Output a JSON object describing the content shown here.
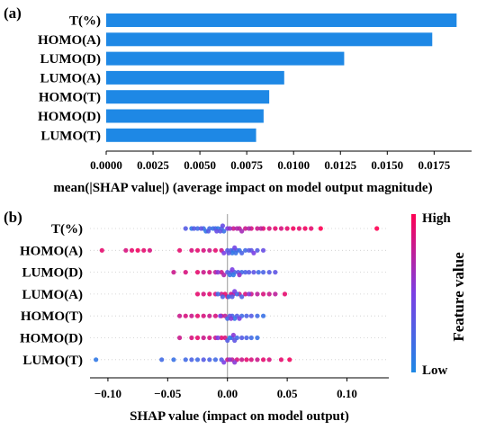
{
  "panel_a_label": "(a)",
  "panel_b_label": "(b)",
  "colors": {
    "bar": "#1E88E5",
    "low": "#1E88E5",
    "high": "#FF0052"
  },
  "chart_data": [
    {
      "type": "bar",
      "orientation": "horizontal",
      "categories": [
        "T(%)",
        "HOMO(A)",
        "LUMO(D)",
        "LUMO(A)",
        "HOMO(T)",
        "HOMO(D)",
        "LUMO(T)"
      ],
      "values": [
        0.0187,
        0.0174,
        0.0127,
        0.0095,
        0.0087,
        0.0084,
        0.008
      ],
      "xlabel": "mean(|SHAP value|) (average impact on model output magnitude)",
      "xticks": [
        "0.0000",
        "0.0025",
        "0.0050",
        "0.0075",
        "0.0100",
        "0.0125",
        "0.0150",
        "0.0175"
      ],
      "xlim": [
        0,
        0.0195
      ]
    },
    {
      "type": "scatter",
      "subtype": "beeswarm",
      "categories": [
        "T(%)",
        "HOMO(A)",
        "LUMO(D)",
        "LUMO(A)",
        "HOMO(T)",
        "HOMO(D)",
        "LUMO(T)"
      ],
      "xlabel": "SHAP value (impact on model output)",
      "xticks": [
        "−0.10",
        "−0.05",
        "0.00",
        "0.05",
        "0.10"
      ],
      "xlim": [
        -0.115,
        0.135
      ],
      "colorbar": {
        "title": "Feature value",
        "high_label": "High",
        "low_label": "Low"
      },
      "series": [
        {
          "name": "T(%)",
          "points": [
            [
              -0.03,
              0.1
            ],
            [
              -0.025,
              0.2
            ],
            [
              -0.02,
              0.15
            ],
            [
              -0.018,
              0.1
            ],
            [
              -0.015,
              0.2
            ],
            [
              -0.012,
              0.15
            ],
            [
              -0.01,
              0.25
            ],
            [
              -0.008,
              0.1
            ],
            [
              -0.005,
              0.2
            ],
            [
              -0.003,
              0.15
            ],
            [
              -0.028,
              0.3
            ],
            [
              -0.022,
              0.35
            ],
            [
              -0.016,
              0.3
            ],
            [
              -0.009,
              0.4
            ],
            [
              -0.006,
              0.35
            ],
            [
              -0.004,
              0.4
            ],
            [
              -0.035,
              0.3
            ],
            [
              0.005,
              0.8
            ],
            [
              0.01,
              0.75
            ],
            [
              0.015,
              0.8
            ],
            [
              0.02,
              0.85
            ],
            [
              0.025,
              0.8
            ],
            [
              0.03,
              0.9
            ],
            [
              0.035,
              0.85
            ],
            [
              0.04,
              0.9
            ],
            [
              0.045,
              0.85
            ],
            [
              0.05,
              0.9
            ],
            [
              0.055,
              0.95
            ],
            [
              0.06,
              0.9
            ],
            [
              0.065,
              0.95
            ],
            [
              0.07,
              0.9
            ],
            [
              0.078,
              1.0
            ],
            [
              0.125,
              1.0
            ],
            [
              0.0,
              0.5
            ],
            [
              0.002,
              0.6
            ],
            [
              0.008,
              0.7
            ],
            [
              0.012,
              0.65
            ],
            [
              0.018,
              0.7
            ],
            [
              0.028,
              0.75
            ]
          ]
        },
        {
          "name": "HOMO(A)",
          "points": [
            [
              -0.105,
              0.9
            ],
            [
              -0.085,
              0.85
            ],
            [
              -0.08,
              0.9
            ],
            [
              -0.075,
              0.95
            ],
            [
              -0.07,
              0.9
            ],
            [
              -0.065,
              0.85
            ],
            [
              -0.04,
              0.9
            ],
            [
              -0.03,
              0.85
            ],
            [
              -0.025,
              0.9
            ],
            [
              -0.02,
              0.85
            ],
            [
              -0.015,
              0.8
            ],
            [
              -0.01,
              0.9
            ],
            [
              -0.005,
              0.8
            ],
            [
              0.0,
              0.3
            ],
            [
              0.003,
              0.25
            ],
            [
              0.005,
              0.2
            ],
            [
              0.008,
              0.3
            ],
            [
              0.01,
              0.15
            ],
            [
              0.012,
              0.25
            ],
            [
              0.015,
              0.2
            ],
            [
              0.018,
              0.3
            ],
            [
              0.02,
              0.35
            ],
            [
              0.025,
              0.3
            ],
            [
              0.03,
              0.4
            ],
            [
              0.004,
              0.1
            ],
            [
              0.007,
              0.15
            ],
            [
              0.001,
              0.35
            ],
            [
              -0.003,
              0.5
            ],
            [
              0.006,
              0.45
            ],
            [
              0.022,
              0.5
            ]
          ]
        },
        {
          "name": "LUMO(D)",
          "points": [
            [
              -0.045,
              0.8
            ],
            [
              -0.035,
              0.85
            ],
            [
              -0.025,
              0.9
            ],
            [
              -0.02,
              0.8
            ],
            [
              -0.015,
              0.85
            ],
            [
              -0.01,
              0.75
            ],
            [
              -0.005,
              0.8
            ],
            [
              -0.003,
              0.7
            ],
            [
              0.0,
              0.3
            ],
            [
              0.003,
              0.35
            ],
            [
              0.006,
              0.25
            ],
            [
              0.009,
              0.3
            ],
            [
              0.012,
              0.2
            ],
            [
              0.015,
              0.25
            ],
            [
              0.018,
              0.3
            ],
            [
              0.022,
              0.35
            ],
            [
              0.026,
              0.2
            ],
            [
              0.03,
              0.25
            ],
            [
              0.035,
              0.3
            ],
            [
              0.04,
              0.35
            ],
            [
              0.002,
              0.15
            ],
            [
              0.005,
              0.1
            ],
            [
              -0.008,
              0.55
            ],
            [
              0.004,
              0.5
            ],
            [
              0.01,
              0.6
            ]
          ]
        },
        {
          "name": "LUMO(A)",
          "points": [
            [
              -0.025,
              0.9
            ],
            [
              -0.02,
              0.85
            ],
            [
              -0.015,
              0.9
            ],
            [
              -0.01,
              0.85
            ],
            [
              -0.005,
              0.8
            ],
            [
              -0.002,
              0.9
            ],
            [
              0.0,
              0.85
            ],
            [
              0.003,
              0.8
            ],
            [
              0.005,
              0.75
            ],
            [
              0.01,
              0.8
            ],
            [
              0.015,
              0.85
            ],
            [
              0.02,
              0.8
            ],
            [
              0.025,
              0.75
            ],
            [
              0.03,
              0.85
            ],
            [
              0.035,
              0.8
            ],
            [
              0.04,
              0.75
            ],
            [
              0.048,
              0.9
            ],
            [
              -0.008,
              0.2
            ],
            [
              -0.004,
              0.25
            ],
            [
              0.001,
              0.15
            ],
            [
              0.004,
              0.3
            ],
            [
              0.008,
              0.2
            ],
            [
              0.012,
              0.25
            ],
            [
              0.006,
              0.5
            ],
            [
              0.018,
              0.55
            ]
          ]
        },
        {
          "name": "HOMO(T)",
          "points": [
            [
              -0.04,
              0.8
            ],
            [
              -0.035,
              0.85
            ],
            [
              -0.03,
              0.8
            ],
            [
              -0.025,
              0.9
            ],
            [
              -0.02,
              0.85
            ],
            [
              -0.015,
              0.8
            ],
            [
              -0.01,
              0.85
            ],
            [
              -0.005,
              0.9
            ],
            [
              -0.002,
              0.75
            ],
            [
              0.0,
              0.2
            ],
            [
              0.004,
              0.25
            ],
            [
              0.008,
              0.3
            ],
            [
              0.012,
              0.2
            ],
            [
              0.016,
              0.25
            ],
            [
              0.02,
              0.3
            ],
            [
              0.025,
              0.2
            ],
            [
              0.03,
              0.15
            ],
            [
              0.002,
              0.35
            ],
            [
              0.006,
              0.1
            ],
            [
              -0.006,
              0.5
            ],
            [
              0.003,
              0.55
            ],
            [
              0.01,
              0.5
            ]
          ]
        },
        {
          "name": "HOMO(D)",
          "points": [
            [
              -0.04,
              0.8
            ],
            [
              -0.03,
              0.85
            ],
            [
              -0.025,
              0.9
            ],
            [
              -0.02,
              0.8
            ],
            [
              -0.015,
              0.85
            ],
            [
              -0.01,
              0.8
            ],
            [
              -0.005,
              0.9
            ],
            [
              -0.002,
              0.85
            ],
            [
              0.0,
              0.3
            ],
            [
              0.004,
              0.25
            ],
            [
              0.008,
              0.2
            ],
            [
              0.012,
              0.3
            ],
            [
              0.016,
              0.25
            ],
            [
              0.02,
              0.2
            ],
            [
              0.025,
              0.15
            ],
            [
              0.006,
              0.35
            ],
            [
              0.002,
              0.1
            ],
            [
              -0.008,
              0.5
            ],
            [
              0.005,
              0.55
            ]
          ]
        },
        {
          "name": "LUMO(T)",
          "points": [
            [
              -0.11,
              0.1
            ],
            [
              -0.055,
              0.2
            ],
            [
              -0.045,
              0.15
            ],
            [
              -0.035,
              0.2
            ],
            [
              -0.03,
              0.25
            ],
            [
              -0.025,
              0.2
            ],
            [
              -0.02,
              0.3
            ],
            [
              -0.015,
              0.25
            ],
            [
              -0.01,
              0.2
            ],
            [
              -0.005,
              0.3
            ],
            [
              0.0,
              0.8
            ],
            [
              0.004,
              0.75
            ],
            [
              0.008,
              0.85
            ],
            [
              0.012,
              0.8
            ],
            [
              0.016,
              0.9
            ],
            [
              0.02,
              0.85
            ],
            [
              0.025,
              0.8
            ],
            [
              0.03,
              0.9
            ],
            [
              0.035,
              0.85
            ],
            [
              0.045,
              0.9
            ],
            [
              0.052,
              0.95
            ],
            [
              0.002,
              0.6
            ],
            [
              0.006,
              0.55
            ],
            [
              -0.003,
              0.5
            ]
          ]
        }
      ]
    }
  ]
}
